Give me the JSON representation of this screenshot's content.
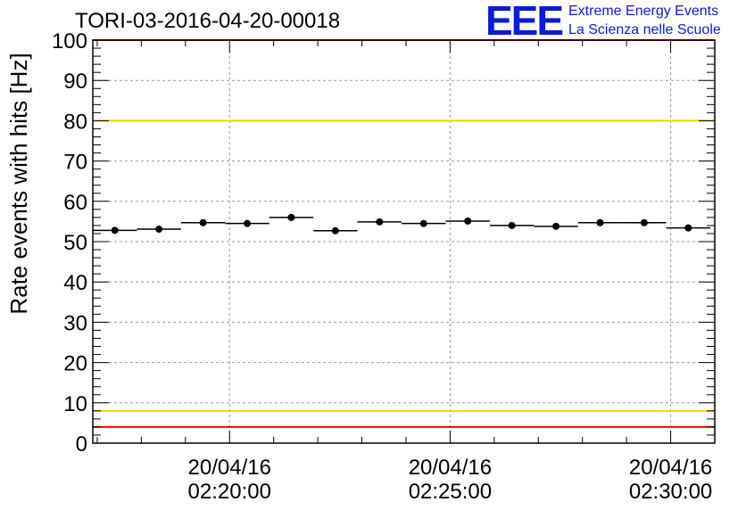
{
  "header": {
    "run_title": "TORI-03-2016-04-20-00018",
    "logo_text": "EEE",
    "logo_line1": "Extreme Energy Events",
    "logo_line2": "La Scienza nelle Scuole"
  },
  "colors": {
    "red_threshold": "#ff0000",
    "yellow_threshold": "#f2d200",
    "logo_blue": "#0b1bd6",
    "grid": "#9a9a9a",
    "data": "#000000"
  },
  "chart_data": {
    "type": "scatter",
    "title": "TORI-03-2016-04-20-00018",
    "ylabel": "Rate events with hits [Hz]",
    "xlabel": "",
    "xlim_minutes": [
      16.9,
      31.0
    ],
    "ylim": [
      0,
      100
    ],
    "grid": true,
    "y_ticks": [
      "0",
      "10",
      "20",
      "30",
      "40",
      "50",
      "60",
      "70",
      "80",
      "90",
      "100"
    ],
    "x_ticks": [
      {
        "minute": 20,
        "date": "20/04/16",
        "time": "02:20:00"
      },
      {
        "minute": 25,
        "date": "20/04/16",
        "time": "02:25:00"
      },
      {
        "minute": 30,
        "date": "20/04/16",
        "time": "02:30:00"
      }
    ],
    "bin_width_minutes": 1,
    "series": [
      {
        "name": "rate",
        "x_minutes": [
          17.4,
          18.4,
          19.4,
          20.4,
          21.4,
          22.4,
          23.4,
          24.4,
          25.4,
          26.4,
          27.4,
          28.4,
          29.4,
          30.4
        ],
        "values": [
          52.8,
          53.1,
          54.7,
          54.5,
          56.0,
          52.7,
          54.9,
          54.5,
          55.1,
          54.0,
          53.8,
          54.7,
          54.7,
          53.4
        ]
      }
    ],
    "threshold_lines": [
      {
        "value": 100,
        "color": "red"
      },
      {
        "value": 80,
        "color": "yellow"
      },
      {
        "value": 8,
        "color": "yellow"
      },
      {
        "value": 4,
        "color": "red"
      }
    ]
  }
}
